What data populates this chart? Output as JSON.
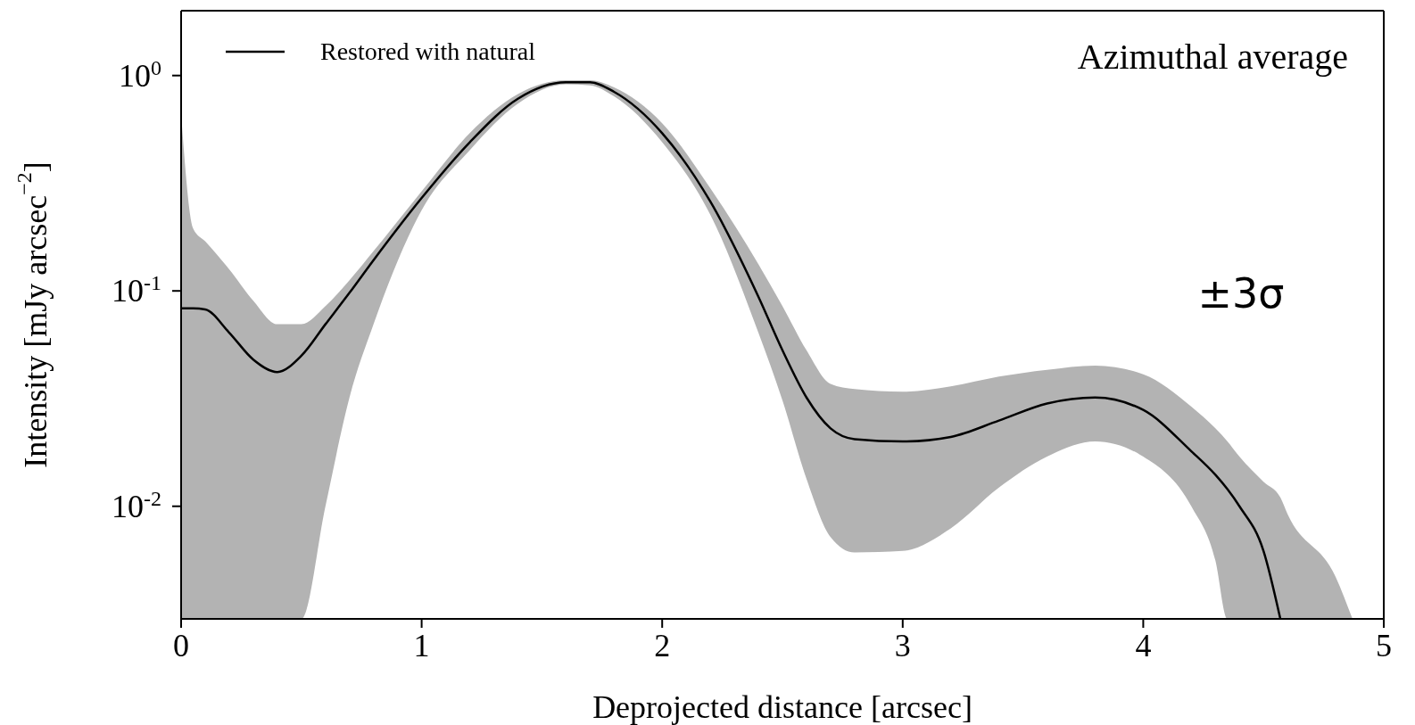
{
  "chart_data": {
    "type": "line",
    "xlabel": "Deprojected distance [arcsec]",
    "ylabel": "Intensity [mJy arcsec$^{−2}$]",
    "annotations": [
      "Azimuthal average",
      "±3σ"
    ],
    "x": [
      0,
      0.05,
      0.1,
      0.2,
      0.3,
      0.4,
      0.5,
      0.6,
      0.7,
      0.8,
      1.0,
      1.2,
      1.4,
      1.6,
      1.7,
      1.8,
      2.0,
      2.2,
      2.4,
      2.5,
      2.6,
      2.7,
      2.8,
      3.0,
      3.2,
      3.4,
      3.6,
      3.8,
      4.0,
      4.2,
      4.3,
      4.35,
      4.4,
      4.5,
      4.57,
      4.6,
      4.8,
      4.87
    ],
    "series": [
      {
        "name": "Restored with natural",
        "color": "#000000",
        "values": [
          0.083,
          0.083,
          0.082,
          0.064,
          0.048,
          0.042,
          0.05,
          0.07,
          0.098,
          0.139,
          0.27,
          0.49,
          0.78,
          0.93,
          0.93,
          0.84,
          0.54,
          0.26,
          0.094,
          0.053,
          0.032,
          0.023,
          0.0205,
          0.02,
          0.021,
          0.025,
          0.03,
          0.032,
          0.028,
          0.018,
          0.014,
          0.012,
          0.01,
          0.0062,
          0.003,
          null,
          null,
          null
        ],
        "lower": [
          0.003,
          0.003,
          0.003,
          0.003,
          0.003,
          0.003,
          0.003,
          0.01,
          0.032,
          0.07,
          0.237,
          0.45,
          0.74,
          0.91,
          0.9,
          0.8,
          0.49,
          0.226,
          0.064,
          0.031,
          0.0134,
          0.0072,
          0.0061,
          0.0062,
          0.0079,
          0.0122,
          0.017,
          0.02,
          0.017,
          0.01,
          0.0056,
          0.003,
          0.003,
          0.003,
          0.003,
          0.003,
          0.003,
          0.003
        ],
        "upper": [
          0.66,
          0.195,
          0.17,
          0.126,
          0.09,
          0.07,
          0.07,
          0.085,
          0.112,
          0.153,
          0.29,
          0.54,
          0.82,
          0.95,
          0.95,
          0.88,
          0.6,
          0.3,
          0.133,
          0.085,
          0.053,
          0.037,
          0.035,
          0.034,
          0.036,
          0.04,
          0.043,
          0.045,
          0.041,
          0.029,
          0.023,
          0.02,
          0.017,
          0.013,
          0.011,
          0.0092,
          0.0047,
          0.003
        ]
      }
    ],
    "xlim": [
      0,
      5
    ],
    "xticks": [
      0,
      1,
      2,
      3,
      4,
      5
    ],
    "ylim": [
      0.003,
      2
    ],
    "yticks": [
      {
        "value": 0.01,
        "label": "10$^{-2}$"
      },
      {
        "value": 0.1,
        "label": "10$^{-1}$"
      },
      {
        "value": 1,
        "label": "10$^{0}$"
      }
    ],
    "log": "y",
    "legend": "top left",
    "marker": "none",
    "line_style": "solid"
  }
}
